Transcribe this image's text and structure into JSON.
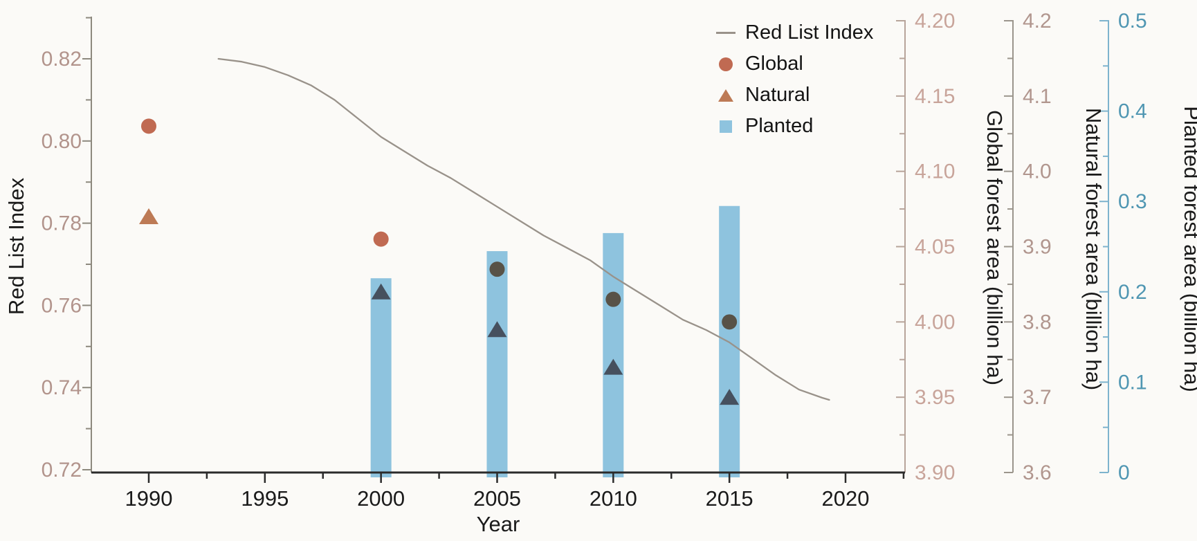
{
  "figure": {
    "background": "#fbfaf7"
  },
  "chart_data": {
    "type": "multi-axis line + scatter + bar",
    "title": "",
    "x_axis": {
      "label": "Year",
      "range": [
        1987.5,
        2022.5
      ],
      "major_ticks": [
        1990,
        1995,
        2000,
        2005,
        2010,
        2015,
        2020
      ],
      "tick_labels": [
        "1990",
        "1995",
        "2000",
        "2005",
        "2010",
        "2015",
        "2020"
      ],
      "minor_ticks": [
        1992.5,
        1997.5,
        2002.5,
        2007.5,
        2012.5,
        2017.5,
        2022.5
      ],
      "color": "#1a1a1a",
      "spine_color": "#2b2b2b"
    },
    "y_axes": [
      {
        "id": "rli",
        "label": "Red List Index",
        "side": "left",
        "range": [
          0.72,
          0.83
        ],
        "major_ticks": [
          0.82,
          0.8,
          0.78,
          0.76,
          0.74,
          0.72
        ],
        "tick_labels": [
          "0.82",
          "0.80",
          "0.78",
          "0.76",
          "0.74",
          "0.72"
        ],
        "minor_ticks": [
          0.83,
          0.81,
          0.79,
          0.77,
          0.75,
          0.73
        ],
        "color": "#b2948c",
        "spine_color": "#8d897e"
      },
      {
        "id": "global",
        "label": "Global forest area (billion ha)",
        "side": "right",
        "range": [
          3.9,
          4.2
        ],
        "major_ticks": [
          4.2,
          4.15,
          4.1,
          4.05,
          4.0,
          3.95,
          3.9
        ],
        "tick_labels": [
          "4.20",
          "4.15",
          "4.10",
          "4.05",
          "4.00",
          "3.95",
          "3.90"
        ],
        "minor_ticks": [
          4.175,
          4.125,
          4.075,
          4.025,
          3.975,
          3.925
        ],
        "color": "#c8a49a",
        "spine_color": "#b7a49a"
      },
      {
        "id": "natural",
        "label": "Natural forest area (billion ha)",
        "side": "right",
        "range": [
          3.6,
          4.2
        ],
        "major_ticks": [
          4.2,
          4.1,
          4.0,
          3.9,
          3.8,
          3.7,
          3.6
        ],
        "tick_labels": [
          "4.2",
          "4.1",
          "4.0",
          "3.9",
          "3.8",
          "3.7",
          "3.6"
        ],
        "minor_ticks": [
          4.15,
          4.05,
          3.95,
          3.85,
          3.75,
          3.65
        ],
        "color": "#b1968e",
        "spine_color": "#9b958c"
      },
      {
        "id": "planted",
        "label": "Planted forest area (billion ha)",
        "side": "right",
        "range": [
          0,
          0.5
        ],
        "major_ticks": [
          0.5,
          0.4,
          0.3,
          0.2,
          0.1,
          0
        ],
        "tick_labels": [
          "0.5",
          "0.4",
          "0.3",
          "0.2",
          "0.1",
          "0"
        ],
        "minor_ticks": [
          0.45,
          0.35,
          0.25,
          0.15,
          0.05
        ],
        "color": "#4f96b2",
        "spine_color": "#7db3cd"
      }
    ],
    "series": [
      {
        "name": "Red List Index",
        "type": "line",
        "axis": "rli",
        "color": "#99928a",
        "points": [
          [
            1993.0,
            0.82
          ],
          [
            1994,
            0.8193
          ],
          [
            1995,
            0.818
          ],
          [
            1996,
            0.816
          ],
          [
            1997,
            0.8135
          ],
          [
            1998,
            0.81
          ],
          [
            1999,
            0.8055
          ],
          [
            2000,
            0.801
          ],
          [
            2001,
            0.7975
          ],
          [
            2002,
            0.794
          ],
          [
            2003,
            0.791
          ],
          [
            2004,
            0.7875
          ],
          [
            2005,
            0.784
          ],
          [
            2006,
            0.7805
          ],
          [
            2007,
            0.777
          ],
          [
            2008,
            0.774
          ],
          [
            2009,
            0.771
          ],
          [
            2010,
            0.767
          ],
          [
            2011,
            0.7635
          ],
          [
            2012,
            0.76
          ],
          [
            2013,
            0.7565
          ],
          [
            2014,
            0.754
          ],
          [
            2015,
            0.751
          ],
          [
            2016,
            0.747
          ],
          [
            2017,
            0.743
          ],
          [
            2018,
            0.7395
          ],
          [
            2019,
            0.7375
          ],
          [
            2019.3,
            0.737
          ]
        ]
      },
      {
        "name": "Global",
        "type": "scatter",
        "marker": "circle",
        "axis": "global",
        "x": [
          1990,
          2000,
          2005,
          2010,
          2015
        ],
        "y": [
          4.13,
          4.055,
          4.035,
          4.015,
          4.0
        ],
        "point_colors": [
          "#c06a52",
          "#c06a52",
          "#585247",
          "#585247",
          "#585247"
        ]
      },
      {
        "name": "Natural",
        "type": "scatter",
        "marker": "triangle",
        "axis": "natural",
        "x": [
          1990,
          2000,
          2005,
          2010,
          2015
        ],
        "y": [
          3.94,
          3.84,
          3.79,
          3.74,
          3.7
        ],
        "point_colors": [
          "#bd7a55",
          "#46505e",
          "#46505e",
          "#46505e",
          "#46505e"
        ]
      },
      {
        "name": "Planted",
        "type": "bar",
        "axis": "planted",
        "x": [
          2000,
          2005,
          2010,
          2015
        ],
        "y": [
          0.215,
          0.245,
          0.265,
          0.295
        ],
        "color": "#8ec3de"
      }
    ],
    "legend": {
      "position": "upper right",
      "items": [
        {
          "label": "Red List Index",
          "swatch": "line",
          "color": "#99928a"
        },
        {
          "label": "Global",
          "swatch": "circle",
          "color": "#c06a52"
        },
        {
          "label": "Natural",
          "swatch": "triangle",
          "color": "#bd7a55"
        },
        {
          "label": "Planted",
          "swatch": "square",
          "color": "#8ec3de"
        }
      ]
    }
  }
}
